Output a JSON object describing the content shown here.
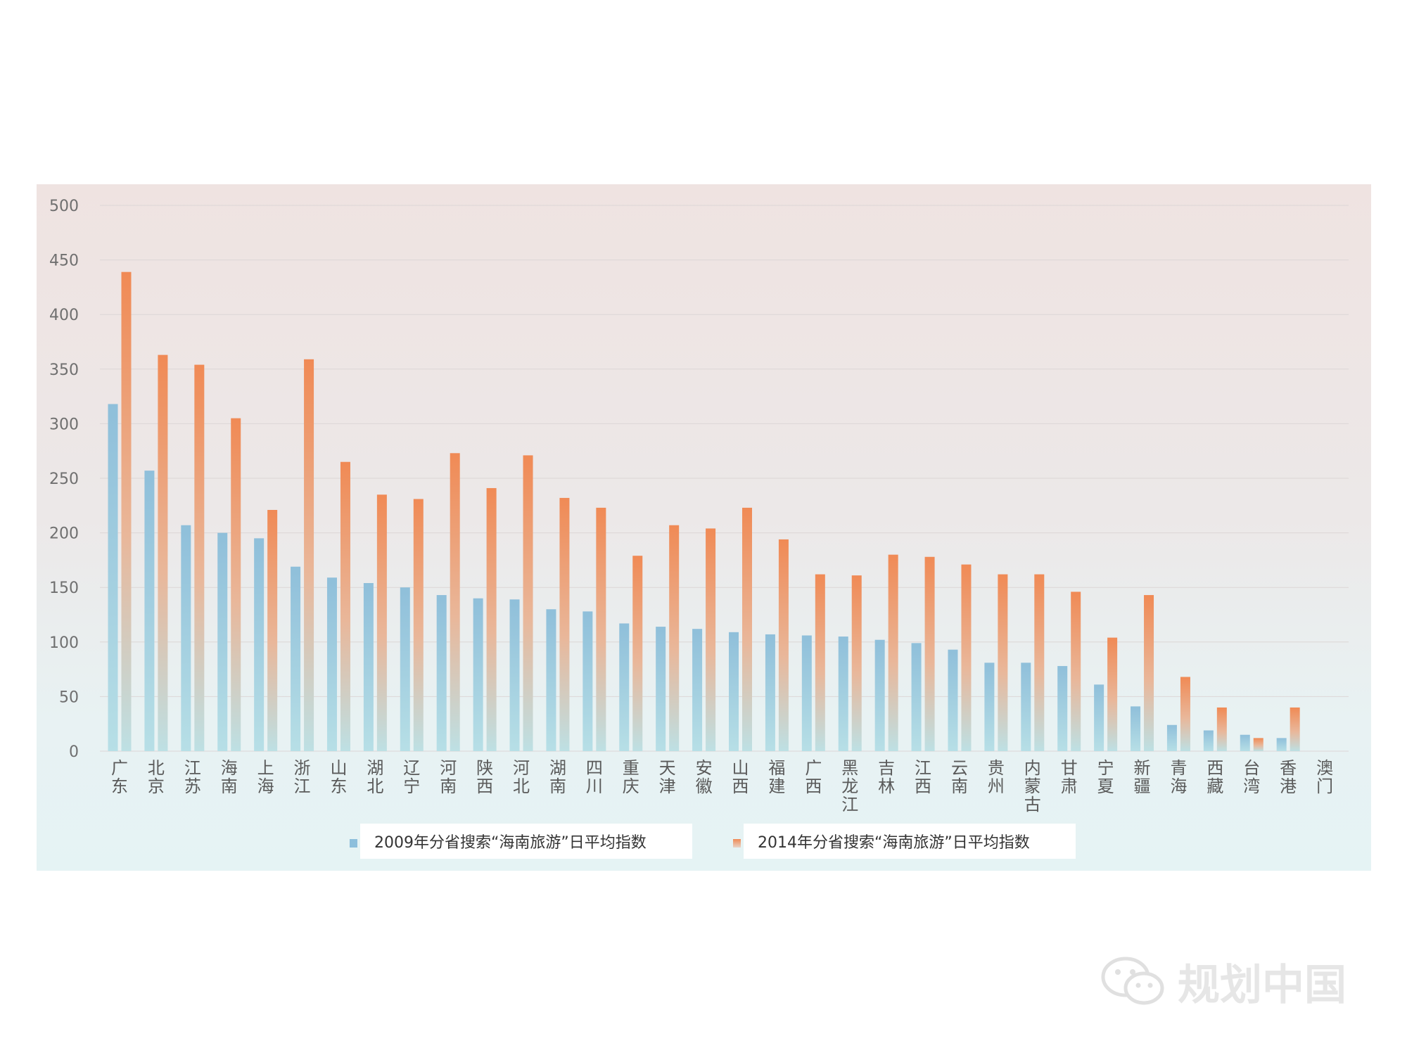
{
  "chart_data": {
    "type": "bar",
    "categories": [
      "广东",
      "北京",
      "江苏",
      "海南",
      "上海",
      "浙江",
      "山东",
      "湖北",
      "辽宁",
      "河南",
      "陕西",
      "河北",
      "湖南",
      "四川",
      "重庆",
      "天津",
      "安徽",
      "山西",
      "福建",
      "广西",
      "黑龙江",
      "吉林",
      "江西",
      "云南",
      "贵州",
      "内蒙古",
      "甘肃",
      "宁夏",
      "新疆",
      "青海",
      "西藏",
      "台湾",
      "香港",
      "澳门"
    ],
    "series": [
      {
        "name": "2009年分省搜索“海南旅游”日平均指数",
        "color": "#8dbfdc",
        "values": [
          318,
          257,
          207,
          200,
          195,
          169,
          159,
          154,
          150,
          143,
          140,
          139,
          130,
          128,
          117,
          114,
          112,
          109,
          107,
          106,
          105,
          102,
          99,
          93,
          81,
          81,
          78,
          61,
          41,
          24,
          19,
          15,
          12,
          0
        ]
      },
      {
        "name": "2014年分省搜索“海南旅游”日平均指数",
        "color": "#ef8f5e",
        "values": [
          439,
          363,
          354,
          305,
          221,
          359,
          265,
          235,
          231,
          273,
          241,
          271,
          232,
          223,
          179,
          207,
          204,
          223,
          194,
          162,
          161,
          180,
          178,
          171,
          162,
          162,
          146,
          104,
          143,
          68,
          40,
          12,
          40,
          0
        ]
      }
    ],
    "y_ticks": [
      "0",
      "50",
      "100",
      "150",
      "200",
      "250",
      "300",
      "350",
      "400",
      "450",
      "500"
    ],
    "ylim": [
      0,
      500
    ],
    "grid": true,
    "legend": "bottom"
  },
  "watermark": {
    "text": "规划中国",
    "icon": "wechat-icon"
  }
}
